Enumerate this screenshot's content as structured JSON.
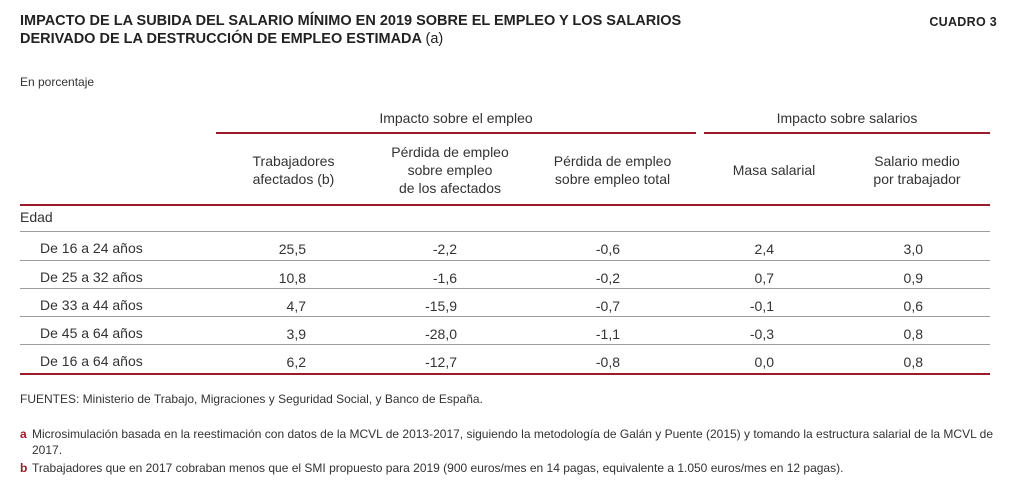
{
  "header": {
    "title_line1": "IMPACTO DE LA SUBIDA DEL SALARIO MÍNIMO EN 2019 SOBRE EL EMPLEO Y LOS SALARIOS",
    "title_line2": "DERIVADO DE LA DESTRUCCIÓN DE EMPLEO ESTIMADA",
    "title_note": "(a)",
    "box_label": "CUADRO 3",
    "unit": "En porcentaje"
  },
  "table": {
    "group_headers": {
      "employment": "Impacto sobre el empleo",
      "wages": "Impacto sobre salarios"
    },
    "columns": [
      [
        "Trabajadores",
        "afectados (b)"
      ],
      [
        "Pérdida de empleo",
        "sobre empleo",
        "de los afectados"
      ],
      [
        "Pérdida de empleo",
        "sobre empleo total"
      ],
      [
        "Masa salarial"
      ],
      [
        "Salario medio",
        "por trabajador"
      ]
    ],
    "section_label": "Edad",
    "rows": [
      {
        "label": "De 16 a 24 años",
        "values": [
          "25,5",
          "-2,2",
          "-0,6",
          "2,4",
          "3,0"
        ]
      },
      {
        "label": "De 25 a 32 años",
        "values": [
          "10,8",
          "-1,6",
          "-0,2",
          "0,7",
          "0,9"
        ]
      },
      {
        "label": "De 33 a 44 años",
        "values": [
          "4,7",
          "-15,9",
          "-0,7",
          "-0,1",
          "0,6"
        ]
      },
      {
        "label": "De 45 a 64 años",
        "values": [
          "3,9",
          "-28,0",
          "-1,1",
          "-0,3",
          "0,8"
        ]
      },
      {
        "label": "De 16 a 64 años",
        "values": [
          "6,2",
          "-12,7",
          "-0,8",
          "0,0",
          "0,8"
        ]
      }
    ]
  },
  "sources": "FUENTES: Ministerio de Trabajo, Migraciones y Seguridad Social, y Banco de España.",
  "notes": [
    {
      "marker": "a",
      "text": "Microsimulación basada en la reestimación con datos de la MCVL de 2013-2017, siguiendo la metodología de Galán y Puente (2015) y tomando la estructura salarial de la MCVL de 2017."
    },
    {
      "marker": "b",
      "text": "Trabajadores que en 2017 cobraban menos que el SMI propuesto para 2019 (900 euros/mes en 14 pagas, equivalente a 1.050 euros/mes en 12 pagas)."
    }
  ]
}
